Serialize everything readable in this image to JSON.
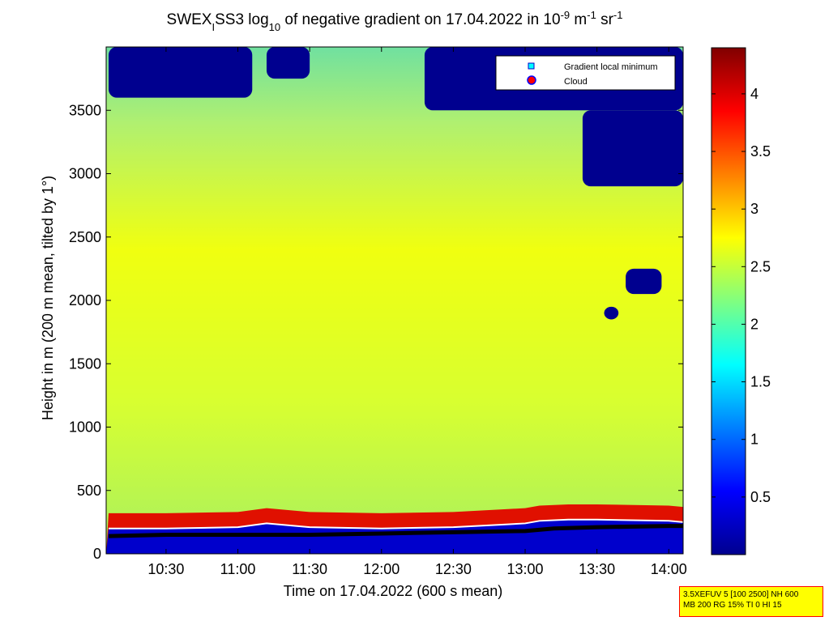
{
  "chart_data": {
    "type": "heatmap",
    "title_parts": {
      "prefix": "SWEX",
      "sub1": "I",
      "mid": "SS3 log",
      "sub2": "10",
      "rest": " of negative gradient on 17.04.2022 in 10",
      "exp1": "-9",
      "unit1": " m",
      "exp2": "-1",
      "unit2": " sr",
      "exp3": "-1"
    },
    "xlabel": "Time on 17.04.2022 (600 s mean)",
    "ylabel": "Height in m (200 m mean, tilted by 1°)",
    "x_ticks": [
      "10:30",
      "11:00",
      "11:30",
      "12:00",
      "12:30",
      "13:00",
      "13:30",
      "14:00"
    ],
    "x_tick_hours": [
      10.5,
      11.0,
      11.5,
      12.0,
      12.5,
      13.0,
      13.5,
      14.0
    ],
    "xlim_hours": [
      10.083,
      14.1
    ],
    "y_ticks": [
      0,
      500,
      1000,
      1500,
      2000,
      2500,
      3000,
      3500
    ],
    "ylim": [
      0,
      4000
    ],
    "colorbar": {
      "colormap": "jet",
      "range": [
        0,
        4.4
      ],
      "ticks": [
        0.5,
        1,
        1.5,
        2,
        2.5,
        3,
        3.5,
        4
      ],
      "tick_labels": [
        "0.5",
        "1",
        "1.5",
        "2",
        "2.5",
        "3",
        "3.5",
        "4"
      ]
    },
    "legend": {
      "placement": "top-right",
      "entries": [
        {
          "label": "Gradient local minimum",
          "marker": "square",
          "color": "#00ffff"
        },
        {
          "label": "Cloud",
          "marker": "circle",
          "color": "#ff0000"
        }
      ]
    },
    "series": [
      {
        "role": "boundary-layer-top",
        "x_hours": [
          10.1,
          10.5,
          11.0,
          11.2,
          11.5,
          12.0,
          12.5,
          13.0,
          13.1,
          13.3,
          13.5,
          14.0,
          14.1
        ],
        "y_m": [
          200,
          200,
          210,
          240,
          210,
          200,
          210,
          240,
          260,
          270,
          270,
          260,
          250
        ]
      },
      {
        "role": "gradient-local-minimum",
        "x_hours": [
          10.1,
          10.5,
          11.0,
          11.5,
          12.0,
          12.5,
          13.0,
          13.2,
          13.5,
          14.0,
          14.1
        ],
        "y_m": [
          140,
          150,
          150,
          150,
          160,
          170,
          180,
          200,
          210,
          220,
          220
        ]
      }
    ],
    "clouds": [
      {
        "x_hours": [
          10.1,
          11.1
        ],
        "y_m": [
          3600,
          4000
        ]
      },
      {
        "x_hours": [
          11.2,
          11.5
        ],
        "y_m": [
          3750,
          4000
        ]
      },
      {
        "x_hours": [
          12.3,
          14.1
        ],
        "y_m": [
          3500,
          4000
        ]
      },
      {
        "x_hours": [
          13.4,
          14.1
        ],
        "y_m": [
          2900,
          3500
        ]
      },
      {
        "x_hours": [
          13.7,
          13.95
        ],
        "y_m": [
          2050,
          2250
        ]
      },
      {
        "x_hours": [
          13.55,
          13.65
        ],
        "y_m": [
          1850,
          1950
        ]
      }
    ]
  },
  "info_box": {
    "line1": "3.5XEFUV 5 [100 2500] NH 600",
    "line2": "MB 200 RG 15% TI 0 HI 15"
  }
}
